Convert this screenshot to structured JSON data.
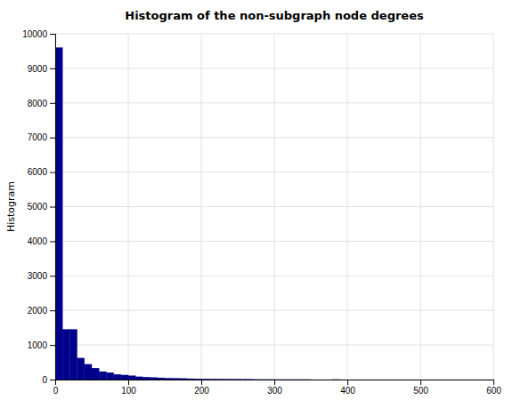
{
  "chart_data": {
    "type": "histogram",
    "title": "Histogram of the non-subgraph node degrees",
    "ylabel": "Histogram",
    "bins": [
      0,
      10,
      20,
      30,
      40,
      50,
      60,
      70,
      80,
      90,
      100,
      110,
      120,
      130,
      140,
      150,
      160,
      170,
      180,
      190,
      200,
      210,
      220,
      230,
      240,
      250,
      260,
      270,
      280,
      290,
      300,
      310,
      320,
      330,
      340,
      350,
      360,
      370,
      380,
      390,
      400,
      410,
      420,
      430,
      440,
      450,
      460,
      470,
      480,
      490,
      500,
      510,
      520,
      530,
      540,
      550,
      560,
      570,
      580,
      590,
      600
    ],
    "values": [
      9600,
      1450,
      1450,
      620,
      440,
      330,
      230,
      200,
      150,
      130,
      110,
      80,
      70,
      60,
      50,
      40,
      35,
      30,
      25,
      20,
      15,
      12,
      10,
      8,
      6,
      5,
      4,
      3,
      2,
      2,
      1,
      1,
      1,
      1,
      1,
      0,
      0,
      0,
      1,
      0,
      0,
      0,
      0,
      0,
      0,
      0,
      0,
      0,
      0,
      0,
      0,
      0,
      0,
      0,
      0,
      0,
      0,
      0,
      0,
      0
    ],
    "color": "#00008B",
    "xlim": [
      0,
      600
    ],
    "ylim": [
      0,
      10000
    ],
    "xticks": [
      0,
      100,
      200,
      300,
      400,
      500,
      600
    ],
    "yticks": [
      0,
      1000,
      2000,
      3000,
      4000,
      5000,
      6000,
      7000,
      8000,
      9000,
      10000
    ],
    "grid": true
  }
}
